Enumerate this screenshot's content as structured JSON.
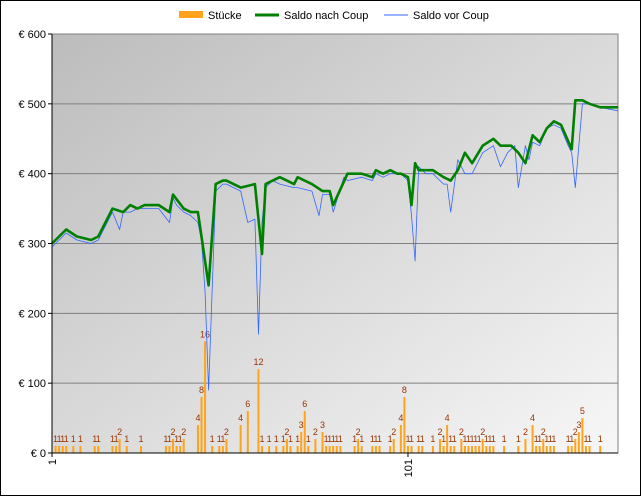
{
  "chart_data": {
    "type": "bar+line",
    "legend": {
      "placement": "top",
      "items": [
        {
          "label": "Stücke",
          "kind": "bar",
          "color": "#ffa31a"
        },
        {
          "label": "Saldo nach Coup",
          "kind": "line",
          "color": "#008000"
        },
        {
          "label": "Saldo vor Coup",
          "kind": "line",
          "color": "#3366ff"
        }
      ]
    },
    "y_axis": {
      "min": 0,
      "max": 600,
      "step": 100,
      "tick_labels": [
        "€ 0",
        "€ 100",
        "€ 200",
        "€ 300",
        "€ 400",
        "€ 500",
        "€ 600"
      ],
      "grid": true
    },
    "x_axis": {
      "min": 1,
      "max": 160,
      "tick_values": [
        1,
        101
      ],
      "tick_labels": [
        "1",
        "101"
      ],
      "label_rotation": -90
    },
    "bar_units_per_stueck": 10,
    "stuecke": {
      "x": [
        2,
        3,
        4,
        5,
        7,
        9,
        13,
        14,
        18,
        19,
        20,
        22,
        26,
        33,
        34,
        35,
        36,
        37,
        38,
        42,
        43,
        44,
        46,
        48,
        49,
        50,
        54,
        56,
        59,
        60,
        62,
        64,
        66,
        67,
        68,
        70,
        71,
        72,
        73,
        75,
        77,
        78,
        79,
        80,
        81,
        82,
        86,
        87,
        88,
        91,
        92,
        93,
        96,
        97,
        99,
        100,
        101,
        102,
        104,
        105,
        108,
        110,
        111,
        112,
        113,
        114,
        116,
        117,
        118,
        119,
        120,
        121,
        122,
        123,
        124,
        125,
        128,
        132,
        134,
        136,
        137,
        138,
        139,
        140,
        141,
        142,
        146,
        147,
        148,
        149,
        150,
        151,
        152,
        155
      ],
      "values": [
        1,
        1,
        1,
        1,
        1,
        1,
        1,
        1,
        1,
        1,
        2,
        1,
        1,
        1,
        1,
        2,
        1,
        1,
        2,
        4,
        8,
        16,
        1,
        1,
        1,
        2,
        4,
        6,
        12,
        1,
        1,
        1,
        1,
        2,
        1,
        1,
        3,
        6,
        1,
        2,
        3,
        1,
        1,
        1,
        1,
        1,
        1,
        2,
        1,
        1,
        1,
        1,
        1,
        2,
        4,
        8,
        1,
        1,
        1,
        1,
        1,
        2,
        1,
        4,
        1,
        1,
        2,
        1,
        1,
        1,
        1,
        1,
        2,
        1,
        1,
        1,
        1,
        1,
        2,
        4,
        1,
        1,
        2,
        1,
        1,
        1,
        1,
        1,
        2,
        3,
        5,
        1,
        1,
        1
      ]
    },
    "saldo_nach_coup": {
      "x": [
        1,
        3,
        5,
        8,
        12,
        14,
        18,
        21,
        23,
        25,
        27,
        28,
        31,
        34,
        35,
        38,
        40,
        42,
        43,
        45,
        47,
        49,
        50,
        54,
        58,
        60,
        61,
        63,
        65,
        69,
        70,
        74,
        77,
        79,
        80,
        84,
        88,
        91,
        92,
        94,
        96,
        98,
        99,
        101,
        102,
        103,
        104,
        106,
        108,
        111,
        113,
        115,
        117,
        119,
        122,
        125,
        127,
        129,
        130,
        132,
        134,
        136,
        138,
        140,
        142,
        144,
        147,
        148,
        150,
        152,
        155,
        160
      ],
      "values": [
        300,
        310,
        320,
        310,
        305,
        310,
        350,
        345,
        355,
        350,
        355,
        355,
        355,
        345,
        370,
        350,
        345,
        345,
        310,
        240,
        385,
        390,
        390,
        380,
        385,
        285,
        385,
        390,
        395,
        385,
        395,
        385,
        375,
        375,
        355,
        400,
        400,
        395,
        405,
        400,
        405,
        400,
        400,
        395,
        355,
        415,
        405,
        405,
        405,
        395,
        390,
        405,
        430,
        415,
        440,
        450,
        440,
        440,
        440,
        430,
        415,
        455,
        445,
        465,
        475,
        470,
        435,
        505,
        505,
        500,
        495,
        495
      ]
    },
    "saldo_vor_coup": {
      "x": [
        1,
        3,
        5,
        8,
        12,
        14,
        18,
        20,
        21,
        23,
        25,
        27,
        31,
        34,
        35,
        36,
        38,
        40,
        42,
        43,
        44,
        45,
        47,
        49,
        50,
        54,
        56,
        58,
        59,
        60,
        61,
        63,
        65,
        69,
        70,
        74,
        76,
        77,
        79,
        80,
        83,
        84,
        88,
        91,
        92,
        94,
        96,
        98,
        99,
        101,
        102,
        103,
        104,
        106,
        108,
        111,
        112,
        113,
        115,
        117,
        119,
        122,
        125,
        127,
        129,
        131,
        132,
        134,
        135,
        136,
        138,
        140,
        142,
        144,
        146,
        147,
        148,
        150,
        152,
        155,
        160
      ],
      "values": [
        295,
        305,
        315,
        305,
        300,
        305,
        345,
        320,
        345,
        345,
        350,
        350,
        350,
        330,
        365,
        355,
        345,
        340,
        330,
        305,
        230,
        90,
        375,
        385,
        385,
        375,
        330,
        335,
        170,
        330,
        380,
        390,
        385,
        380,
        380,
        375,
        340,
        370,
        370,
        345,
        395,
        390,
        395,
        390,
        400,
        395,
        400,
        400,
        400,
        390,
        340,
        275,
        410,
        400,
        400,
        385,
        385,
        345,
        420,
        400,
        400,
        430,
        440,
        410,
        430,
        440,
        380,
        440,
        420,
        445,
        440,
        465,
        470,
        465,
        440,
        430,
        380,
        500,
        500,
        495,
        490
      ]
    }
  }
}
